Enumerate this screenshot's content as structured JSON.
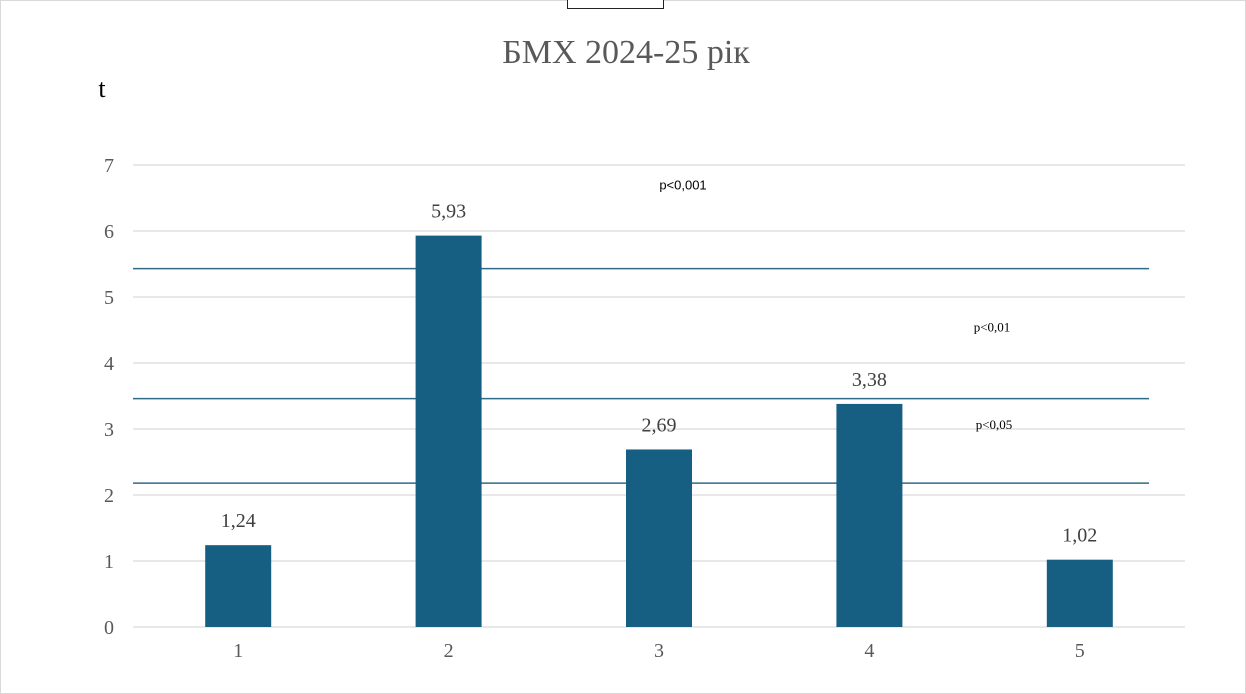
{
  "chart_data": {
    "type": "bar",
    "title": "БМХ 2024-25 рік",
    "ylabel": "t",
    "xlabel": "",
    "categories": [
      "1",
      "2",
      "3",
      "4",
      "5"
    ],
    "values": [
      1.24,
      5.93,
      2.69,
      3.38,
      1.02
    ],
    "data_labels": [
      "1,24",
      "5,93",
      "2,69",
      "3,38",
      "1,02"
    ],
    "ylim": [
      0,
      7
    ],
    "yticks": [
      "0",
      "1",
      "2",
      "3",
      "4",
      "5",
      "6",
      "7"
    ],
    "grid": true,
    "bar_color": "#175f82",
    "threshold_color": "#2f6b86",
    "thresholds": [
      {
        "label": "p<0,05",
        "value": 2.18
      },
      {
        "label": "p<0,01",
        "value": 3.46
      },
      {
        "label": "p<0,001",
        "value": 5.43
      }
    ]
  }
}
